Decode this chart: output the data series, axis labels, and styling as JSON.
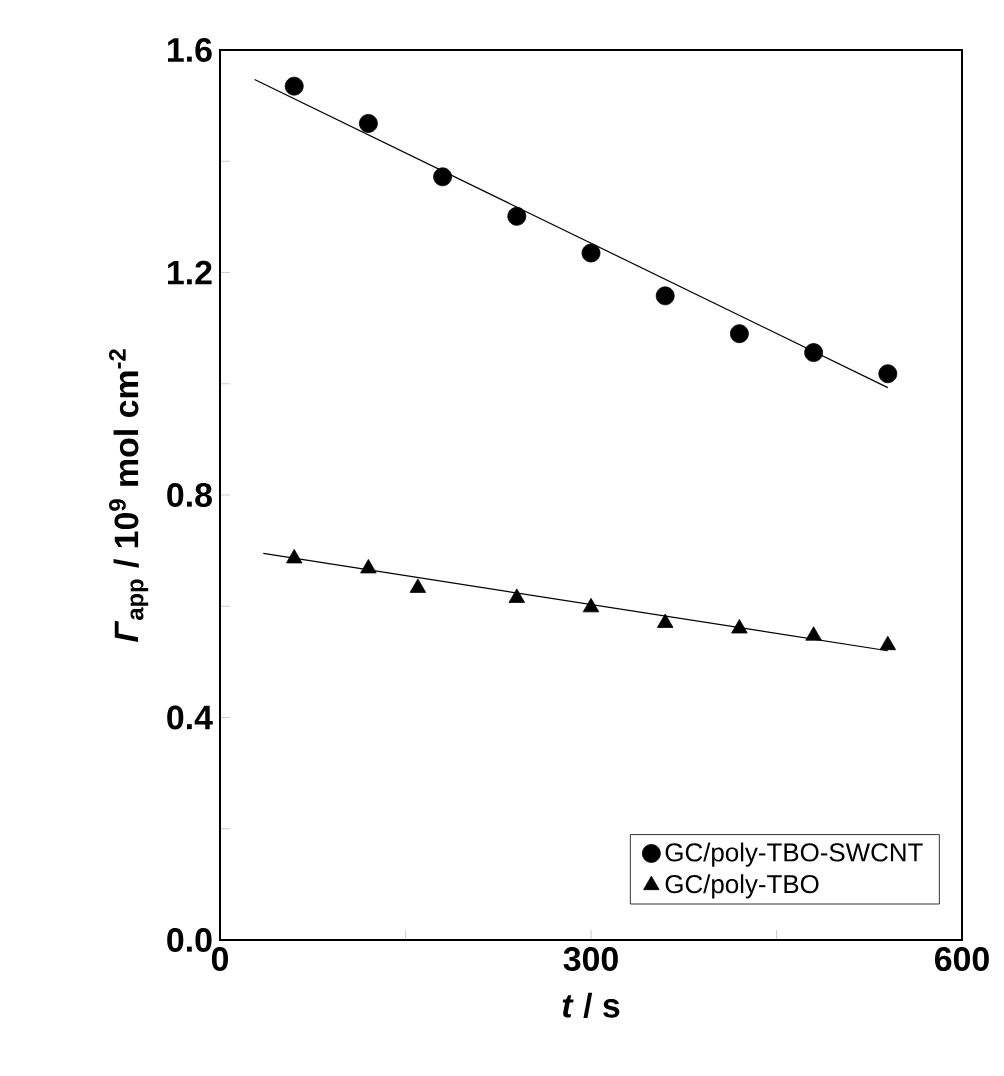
{
  "chart_data": {
    "type": "scatter",
    "xlabel": "*t*  /  s",
    "ylabel": "*Γ*$_{app}$  /  10$^{9}$ mol cm$^{-2}$",
    "xlim": [
      0,
      600
    ],
    "ylim": [
      0,
      1.6
    ],
    "xticks": [
      0,
      {
        "value": 150,
        "label": null
      },
      300,
      {
        "value": 450,
        "label": null
      },
      600
    ],
    "yticks": [
      {
        "value": 0,
        "label": "0.0"
      },
      {
        "value": 0.2,
        "label": null
      },
      0.4,
      {
        "value": 0.6,
        "label": null
      },
      0.8,
      {
        "value": 1.0,
        "label": null
      },
      1.2,
      {
        "value": 1.4,
        "label": null
      },
      1.6
    ],
    "legend": "bottom right",
    "series": [
      {
        "name": "GC/poly-TBO-SWCNT",
        "color": "#000000",
        "marker": "circle",
        "x": [
          60,
          120,
          180,
          240,
          300,
          360,
          420,
          480,
          540
        ],
        "values": [
          1.535,
          1.468,
          1.372,
          1.301,
          1.235,
          1.158,
          1.09,
          1.056,
          1.018
        ]
      },
      {
        "name": "GC/poly-TBO",
        "color": "#000000",
        "marker": "triangle",
        "x": [
          60,
          120,
          160,
          240,
          300,
          360,
          420,
          480,
          540
        ],
        "values": [
          0.686,
          0.668,
          0.633,
          0.615,
          0.598,
          0.57,
          0.56,
          0.547,
          0.53
        ]
      },
      {
        "type": "line",
        "color": "#000000",
        "x": [
          28,
          540
        ],
        "values": [
          1.547,
          0.993
        ]
      },
      {
        "type": "line",
        "color": "#000000",
        "x": [
          35,
          540
        ],
        "values": [
          0.695,
          0.52
        ]
      }
    ]
  }
}
